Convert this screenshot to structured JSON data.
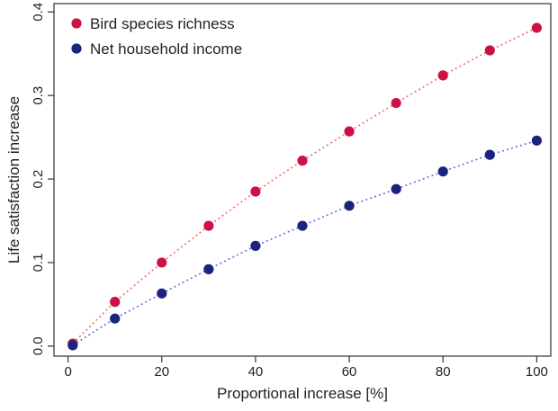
{
  "chart_data": {
    "type": "scatter",
    "title": "",
    "xlabel": "Proportional increase [%]",
    "ylabel": "Life satisfaction increase",
    "xlim": [
      -3,
      103
    ],
    "ylim": [
      -0.012,
      0.41
    ],
    "x_ticks": [
      0,
      20,
      40,
      60,
      80,
      100
    ],
    "y_ticks": [
      0.0,
      0.1,
      0.2,
      0.3,
      0.4
    ],
    "x_tick_labels": [
      "0",
      "20",
      "40",
      "60",
      "80",
      "100"
    ],
    "y_tick_labels": [
      "0.0",
      "0.1",
      "0.2",
      "0.3",
      "0.4"
    ],
    "grid": false,
    "legend_position": "top-left",
    "x": [
      1,
      10,
      20,
      30,
      40,
      50,
      60,
      70,
      80,
      90,
      100
    ],
    "series": [
      {
        "name": "Bird species richness",
        "color": "#cc1144",
        "line_color": "#f06b6b",
        "values": [
          0.003,
          0.053,
          0.1,
          0.144,
          0.185,
          0.222,
          0.257,
          0.291,
          0.324,
          0.354,
          0.381
        ]
      },
      {
        "name": "Net household income",
        "color": "#1a237e",
        "line_color": "#6b6bdd",
        "values": [
          0.001,
          0.033,
          0.063,
          0.092,
          0.12,
          0.144,
          0.168,
          0.188,
          0.209,
          0.229,
          0.246
        ]
      }
    ]
  }
}
